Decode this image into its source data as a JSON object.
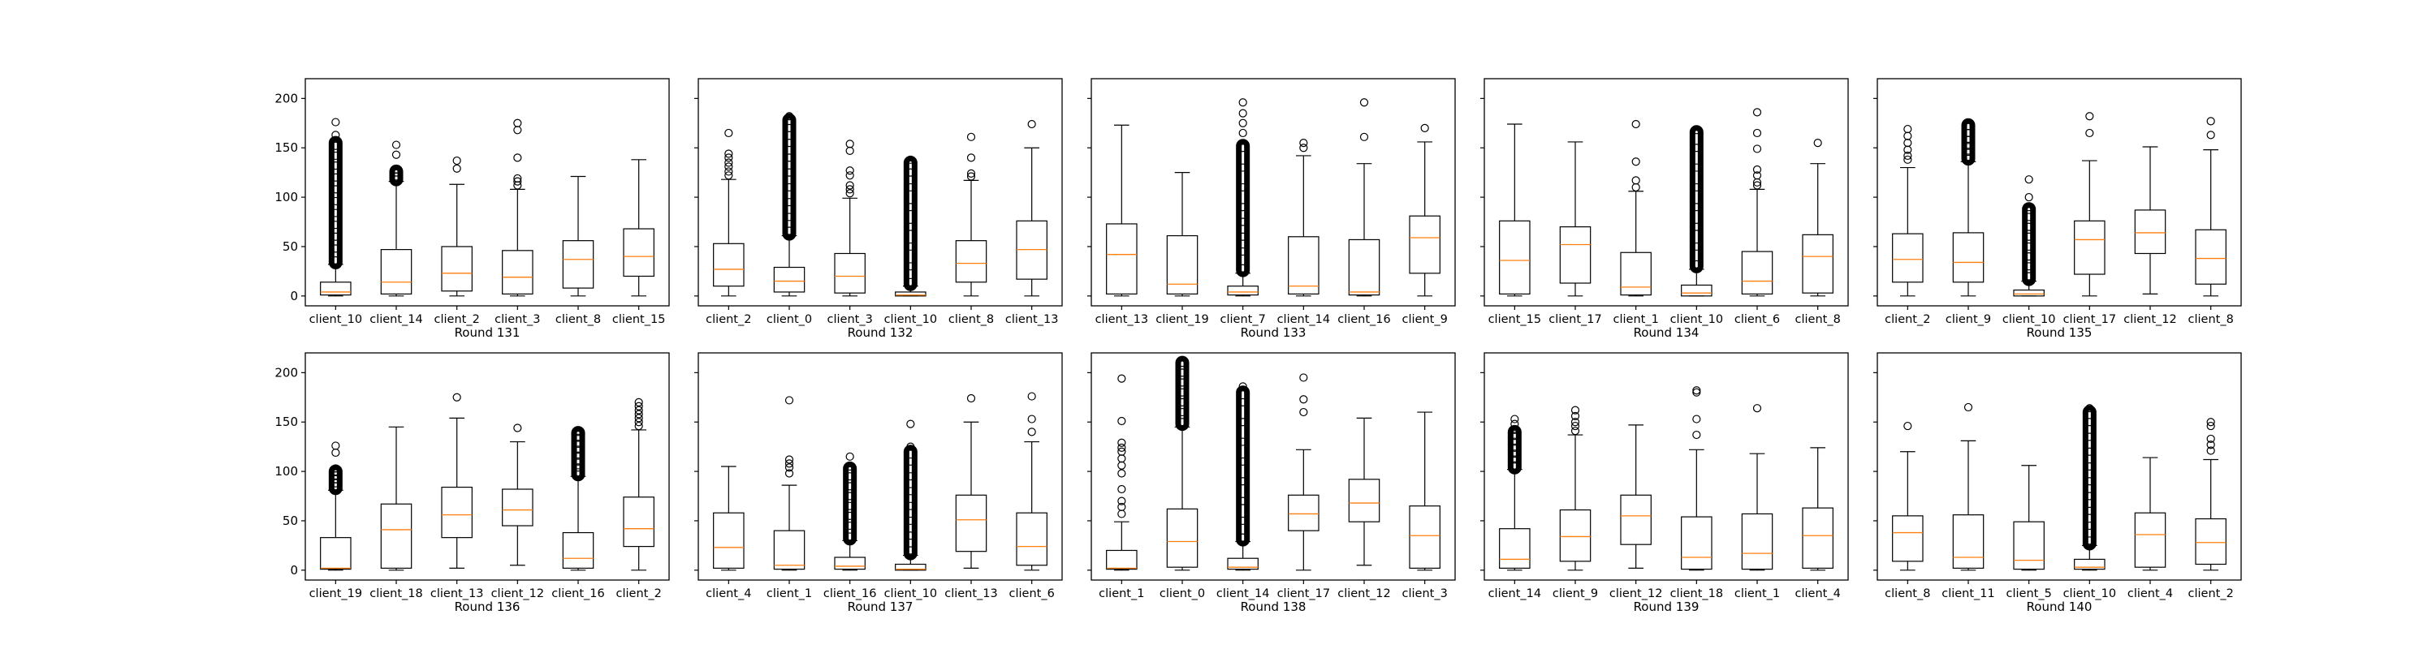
{
  "colors": {
    "box": "#000000",
    "median": "#ff7f0e",
    "flier": "#000000",
    "background": "#ffffff"
  },
  "chart_data": {
    "type": "boxplot",
    "ylim": [
      -10,
      220
    ],
    "yticks": [
      0,
      50,
      100,
      150,
      200
    ],
    "grid": false,
    "panels": [
      {
        "title": "Round 131",
        "categories": [
          "client_10",
          "client_14",
          "client_2",
          "client_3",
          "client_8",
          "client_15"
        ],
        "boxes": [
          {
            "whislo": 0,
            "q1": 1,
            "med": 4,
            "q3": 14,
            "whishi": 32,
            "fliers": [
              36,
              48,
              60,
              72,
              84,
              96,
              108,
              120,
              132,
              142,
              152,
              163,
              176
            ],
            "dense": [
              34,
              155
            ]
          },
          {
            "whislo": 0,
            "q1": 2,
            "med": 14,
            "q3": 47,
            "whishi": 116,
            "fliers": [
              121,
              125,
              128,
              143,
              153
            ],
            "dense": [
              118,
              126
            ]
          },
          {
            "whislo": 0,
            "q1": 5,
            "med": 23,
            "q3": 50,
            "whishi": 113,
            "fliers": [
              129,
              137
            ]
          },
          {
            "whislo": 0,
            "q1": 2,
            "med": 19,
            "q3": 46,
            "whishi": 108,
            "fliers": [
              112,
              116,
              119,
              140,
              168,
              175
            ]
          },
          {
            "whislo": 0,
            "q1": 8,
            "med": 37,
            "q3": 56,
            "whishi": 121,
            "fliers": []
          },
          {
            "whislo": 0,
            "q1": 20,
            "med": 40,
            "q3": 68,
            "whishi": 138,
            "fliers": []
          }
        ]
      },
      {
        "title": "Round 132",
        "categories": [
          "client_2",
          "client_0",
          "client_3",
          "client_10",
          "client_8",
          "client_13"
        ],
        "boxes": [
          {
            "whislo": 0,
            "q1": 10,
            "med": 27,
            "q3": 53,
            "whishi": 118,
            "fliers": [
              122,
              126,
              131,
              135,
              140,
              144,
              165
            ]
          },
          {
            "whislo": 0,
            "q1": 4,
            "med": 15,
            "q3": 29,
            "whishi": 61,
            "fliers": [
              66,
              80,
              95,
              110,
              125,
              140,
              155,
              170,
              182
            ],
            "dense": [
              63,
              178
            ]
          },
          {
            "whislo": 0,
            "q1": 3,
            "med": 20,
            "q3": 43,
            "whishi": 99,
            "fliers": [
              104,
              108,
              112,
              122,
              127,
              147,
              154
            ]
          },
          {
            "whislo": 0,
            "q1": 0,
            "med": 1,
            "q3": 4,
            "whishi": 10,
            "fliers": [
              14,
              30,
              50,
              70,
              90,
              110,
              125,
              138
            ],
            "dense": [
              12,
              135
            ]
          },
          {
            "whislo": 0,
            "q1": 14,
            "med": 33,
            "q3": 56,
            "whishi": 117,
            "fliers": [
              121,
              124,
              140,
              161
            ]
          },
          {
            "whislo": 0,
            "q1": 17,
            "med": 47,
            "q3": 76,
            "whishi": 150,
            "fliers": [
              174
            ]
          }
        ]
      },
      {
        "title": "Round 133",
        "categories": [
          "client_13",
          "client_19",
          "client_7",
          "client_14",
          "client_16",
          "client_9"
        ],
        "boxes": [
          {
            "whislo": 0,
            "q1": 2,
            "med": 42,
            "q3": 73,
            "whishi": 173,
            "fliers": []
          },
          {
            "whislo": 0,
            "q1": 2,
            "med": 12,
            "q3": 61,
            "whishi": 125,
            "fliers": []
          },
          {
            "whislo": 0,
            "q1": 1,
            "med": 4,
            "q3": 10,
            "whishi": 23,
            "fliers": [
              28,
              45,
              60,
              75,
              90,
              110,
              130,
              150,
              165,
              175,
              185,
              196
            ],
            "dense": [
              26,
              152
            ]
          },
          {
            "whislo": 0,
            "q1": 2,
            "med": 10,
            "q3": 60,
            "whishi": 142,
            "fliers": [
              150,
              155
            ]
          },
          {
            "whislo": 0,
            "q1": 1,
            "med": 4,
            "q3": 57,
            "whishi": 134,
            "fliers": [
              161,
              196
            ]
          },
          {
            "whislo": 0,
            "q1": 23,
            "med": 59,
            "q3": 81,
            "whishi": 156,
            "fliers": [
              170
            ]
          }
        ]
      },
      {
        "title": "Round 134",
        "categories": [
          "client_15",
          "client_17",
          "client_1",
          "client_10",
          "client_6",
          "client_8"
        ],
        "boxes": [
          {
            "whislo": 0,
            "q1": 2,
            "med": 36,
            "q3": 76,
            "whishi": 174,
            "fliers": []
          },
          {
            "whislo": 0,
            "q1": 13,
            "med": 52,
            "q3": 70,
            "whishi": 156,
            "fliers": []
          },
          {
            "whislo": 0,
            "q1": 1,
            "med": 9,
            "q3": 44,
            "whishi": 106,
            "fliers": [
              110,
              117,
              136,
              174
            ]
          },
          {
            "whislo": 0,
            "q1": 0,
            "med": 3,
            "q3": 11,
            "whishi": 27,
            "fliers": [
              32,
              50,
              70,
              90,
              110,
              130,
              150,
              168
            ],
            "dense": [
              30,
              166
            ]
          },
          {
            "whislo": 0,
            "q1": 2,
            "med": 15,
            "q3": 45,
            "whishi": 108,
            "fliers": [
              112,
              115,
              122,
              128,
              149,
              165,
              186
            ]
          },
          {
            "whislo": 0,
            "q1": 3,
            "med": 40,
            "q3": 62,
            "whishi": 134,
            "fliers": [
              155
            ]
          }
        ]
      },
      {
        "title": "Round 135",
        "categories": [
          "client_2",
          "client_9",
          "client_10",
          "client_17",
          "client_12",
          "client_8"
        ],
        "boxes": [
          {
            "whislo": 0,
            "q1": 14,
            "med": 37,
            "q3": 63,
            "whishi": 130,
            "fliers": [
              138,
              142,
              148,
              155,
              162,
              169
            ]
          },
          {
            "whislo": 0,
            "q1": 14,
            "med": 34,
            "q3": 64,
            "whishi": 136,
            "fliers": [
              140,
              146,
              152,
              158,
              165,
              172
            ],
            "dense": [
              139,
              173
            ]
          },
          {
            "whislo": 0,
            "q1": 0,
            "med": 2,
            "q3": 6,
            "whishi": 15,
            "fliers": [
              20,
              30,
              40,
              50,
              60,
              70,
              80,
              90,
              100,
              118
            ],
            "dense": [
              17,
              88
            ]
          },
          {
            "whislo": 0,
            "q1": 22,
            "med": 57,
            "q3": 76,
            "whishi": 137,
            "fliers": [
              165,
              182
            ]
          },
          {
            "whislo": 2,
            "q1": 43,
            "med": 64,
            "q3": 87,
            "whishi": 151,
            "fliers": []
          },
          {
            "whislo": 0,
            "q1": 12,
            "med": 38,
            "q3": 67,
            "whishi": 148,
            "fliers": [
              163,
              177
            ]
          }
        ]
      },
      {
        "title": "Round 136",
        "categories": [
          "client_19",
          "client_18",
          "client_13",
          "client_12",
          "client_16",
          "client_2"
        ],
        "boxes": [
          {
            "whislo": 0,
            "q1": 1,
            "med": 2,
            "q3": 33,
            "whishi": 81,
            "fliers": [
              85,
              88,
              92,
              96,
              100,
              103,
              119,
              126
            ],
            "dense": [
              83,
              100
            ]
          },
          {
            "whislo": 0,
            "q1": 2,
            "med": 41,
            "q3": 67,
            "whishi": 145,
            "fliers": []
          },
          {
            "whislo": 2,
            "q1": 33,
            "med": 56,
            "q3": 84,
            "whishi": 154,
            "fliers": [
              175
            ]
          },
          {
            "whislo": 5,
            "q1": 45,
            "med": 61,
            "q3": 82,
            "whishi": 130,
            "fliers": [
              144
            ]
          },
          {
            "whislo": 0,
            "q1": 2,
            "med": 12,
            "q3": 38,
            "whishi": 95,
            "fliers": [
              99,
              104,
              110,
              116,
              122,
              128,
              134,
              140
            ],
            "dense": [
              97,
              139
            ]
          },
          {
            "whislo": 0,
            "q1": 24,
            "med": 42,
            "q3": 74,
            "whishi": 142,
            "fliers": [
              146,
              150,
              154,
              158,
              162,
              166,
              170
            ]
          }
        ]
      },
      {
        "title": "Round 137",
        "categories": [
          "client_4",
          "client_1",
          "client_16",
          "client_10",
          "client_13",
          "client_6"
        ],
        "boxes": [
          {
            "whislo": 0,
            "q1": 2,
            "med": 23,
            "q3": 58,
            "whishi": 105,
            "fliers": []
          },
          {
            "whislo": 0,
            "q1": 1,
            "med": 5,
            "q3": 40,
            "whishi": 86,
            "fliers": [
              98,
              104,
              108,
              112,
              172
            ]
          },
          {
            "whislo": 0,
            "q1": 1,
            "med": 4,
            "q3": 13,
            "whishi": 30,
            "fliers": [
              34,
              45,
              55,
              65,
              75,
              85,
              95,
              105,
              115
            ],
            "dense": [
              32,
              103
            ]
          },
          {
            "whislo": 0,
            "q1": 0,
            "med": 1,
            "q3": 6,
            "whishi": 15,
            "fliers": [
              20,
              35,
              50,
              65,
              80,
              95,
              110,
              125,
              148
            ],
            "dense": [
              17,
              120
            ]
          },
          {
            "whislo": 2,
            "q1": 19,
            "med": 51,
            "q3": 76,
            "whishi": 150,
            "fliers": [
              174
            ]
          },
          {
            "whislo": 0,
            "q1": 5,
            "med": 24,
            "q3": 58,
            "whishi": 130,
            "fliers": [
              140,
              153,
              176
            ]
          }
        ]
      },
      {
        "title": "Round 138",
        "categories": [
          "client_1",
          "client_0",
          "client_14",
          "client_17",
          "client_12",
          "client_3"
        ],
        "boxes": [
          {
            "whislo": 0,
            "q1": 1,
            "med": 2,
            "q3": 20,
            "whishi": 49,
            "fliers": [
              57,
              64,
              70,
              82,
              98,
              106,
              113,
              120,
              124,
              129,
              151,
              194
            ]
          },
          {
            "whislo": 0,
            "q1": 3,
            "med": 29,
            "q3": 62,
            "whishi": 145,
            "fliers": [
              150,
              160,
              170,
              180,
              190,
              200,
              210
            ],
            "dense": [
              148,
              210
            ]
          },
          {
            "whislo": 0,
            "q1": 1,
            "med": 3,
            "q3": 12,
            "whishi": 29,
            "fliers": [
              33,
              50,
              70,
              90,
              110,
              130,
              150,
              170,
              186
            ],
            "dense": [
              31,
              180
            ]
          },
          {
            "whislo": 0,
            "q1": 40,
            "med": 57,
            "q3": 76,
            "whishi": 122,
            "fliers": [
              160,
              173,
              195
            ]
          },
          {
            "whislo": 5,
            "q1": 49,
            "med": 68,
            "q3": 92,
            "whishi": 154,
            "fliers": []
          },
          {
            "whislo": 0,
            "q1": 2,
            "med": 35,
            "q3": 65,
            "whishi": 160,
            "fliers": []
          }
        ]
      },
      {
        "title": "Round 139",
        "categories": [
          "client_14",
          "client_9",
          "client_12",
          "client_18",
          "client_1",
          "client_4"
        ],
        "boxes": [
          {
            "whislo": 0,
            "q1": 2,
            "med": 11,
            "q3": 42,
            "whishi": 102,
            "fliers": [
              106,
              112,
              118,
              124,
              130,
              136,
              142,
              148,
              153
            ],
            "dense": [
              104,
              140
            ]
          },
          {
            "whislo": 0,
            "q1": 9,
            "med": 34,
            "q3": 61,
            "whishi": 137,
            "fliers": [
              141,
              146,
              150,
              156,
              162
            ]
          },
          {
            "whislo": 2,
            "q1": 26,
            "med": 55,
            "q3": 76,
            "whishi": 147,
            "fliers": []
          },
          {
            "whislo": 0,
            "q1": 1,
            "med": 13,
            "q3": 54,
            "whishi": 122,
            "fliers": [
              137,
              153,
              180,
              182
            ]
          },
          {
            "whislo": 0,
            "q1": 1,
            "med": 17,
            "q3": 57,
            "whishi": 118,
            "fliers": [
              164
            ]
          },
          {
            "whislo": 0,
            "q1": 2,
            "med": 35,
            "q3": 63,
            "whishi": 124,
            "fliers": []
          }
        ]
      },
      {
        "title": "Round 140",
        "categories": [
          "client_8",
          "client_11",
          "client_5",
          "client_10",
          "client_4",
          "client_2"
        ],
        "boxes": [
          {
            "whislo": 0,
            "q1": 9,
            "med": 38,
            "q3": 55,
            "whishi": 120,
            "fliers": [
              146
            ]
          },
          {
            "whislo": 0,
            "q1": 2,
            "med": 13,
            "q3": 56,
            "whishi": 131,
            "fliers": [
              165
            ]
          },
          {
            "whislo": 0,
            "q1": 1,
            "med": 10,
            "q3": 49,
            "whishi": 106,
            "fliers": []
          },
          {
            "whislo": 0,
            "q1": 1,
            "med": 3,
            "q3": 11,
            "whishi": 25,
            "fliers": [
              30,
              45,
              60,
              75,
              90,
              105,
              120,
              135,
              150,
              164
            ],
            "dense": [
              27,
              160
            ]
          },
          {
            "whislo": 0,
            "q1": 3,
            "med": 36,
            "q3": 58,
            "whishi": 114,
            "fliers": []
          },
          {
            "whislo": 0,
            "q1": 6,
            "med": 28,
            "q3": 52,
            "whishi": 112,
            "fliers": [
              121,
              127,
              133,
              146,
              150
            ]
          }
        ]
      }
    ]
  }
}
